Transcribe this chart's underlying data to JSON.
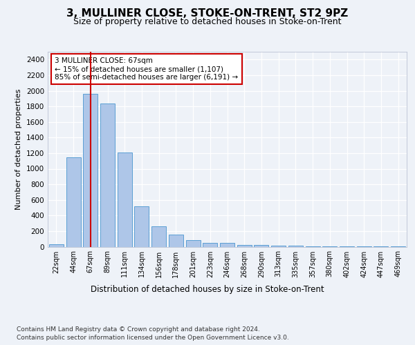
{
  "title": "3, MULLINER CLOSE, STOKE-ON-TRENT, ST2 9PZ",
  "subtitle": "Size of property relative to detached houses in Stoke-on-Trent",
  "xlabel": "Distribution of detached houses by size in Stoke-on-Trent",
  "ylabel": "Number of detached properties",
  "categories": [
    "22sqm",
    "44sqm",
    "67sqm",
    "89sqm",
    "111sqm",
    "134sqm",
    "156sqm",
    "178sqm",
    "201sqm",
    "223sqm",
    "246sqm",
    "268sqm",
    "290sqm",
    "313sqm",
    "335sqm",
    "357sqm",
    "380sqm",
    "402sqm",
    "424sqm",
    "447sqm",
    "469sqm"
  ],
  "values": [
    30,
    1150,
    1960,
    1840,
    1210,
    515,
    265,
    155,
    80,
    50,
    45,
    25,
    20,
    15,
    10,
    8,
    5,
    5,
    5,
    5,
    5
  ],
  "bar_color": "#aec6e8",
  "bar_edge_color": "#5a9fd4",
  "highlight_color": "#cc0000",
  "highlight_index": 2,
  "annotation_text": "3 MULLINER CLOSE: 67sqm\n← 15% of detached houses are smaller (1,107)\n85% of semi-detached houses are larger (6,191) →",
  "ylim": [
    0,
    2500
  ],
  "yticks": [
    0,
    200,
    400,
    600,
    800,
    1000,
    1200,
    1400,
    1600,
    1800,
    2000,
    2200,
    2400
  ],
  "footer1": "Contains HM Land Registry data © Crown copyright and database right 2024.",
  "footer2": "Contains public sector information licensed under the Open Government Licence v3.0.",
  "bg_color": "#eef2f8",
  "plot_bg_color": "#eef2f8",
  "grid_color": "#ffffff",
  "title_fontsize": 11,
  "subtitle_fontsize": 9,
  "annotation_box_color": "#ffffff",
  "annotation_box_edge_color": "#cc0000"
}
